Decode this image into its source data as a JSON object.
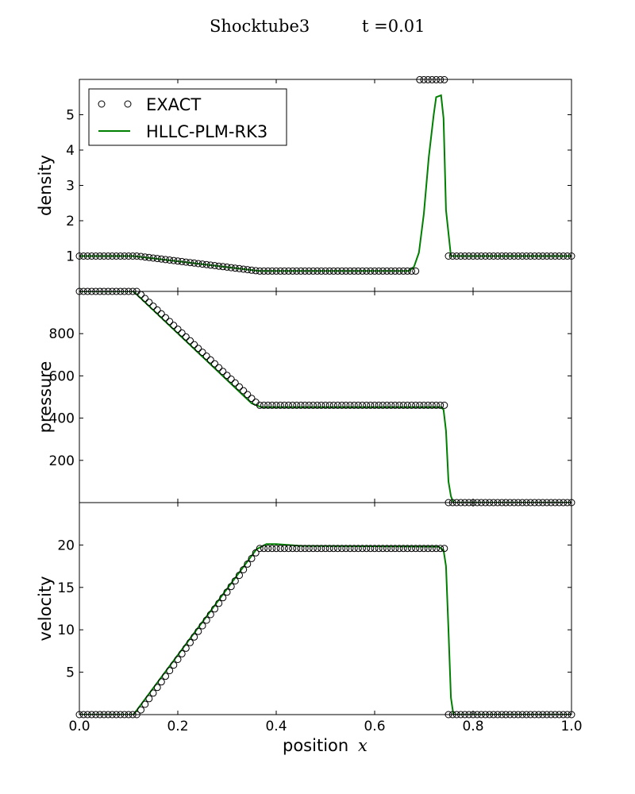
{
  "title": {
    "left": "Shocktube3",
    "right": "t =0.01"
  },
  "legend": {
    "exact_label": "EXACT",
    "numeric_label": "HLLC-PLM-RK3",
    "placement": "top-left of density panel"
  },
  "colors": {
    "exact_marker": "#000000",
    "numeric_line": "#008000",
    "axes": "#000000",
    "background": "#ffffff"
  },
  "xaxis": {
    "label_text": "position",
    "label_var": "x",
    "xlim": [
      0.0,
      1.0
    ],
    "ticks": [
      0.0,
      0.2,
      0.4,
      0.6,
      0.8,
      1.0
    ],
    "tick_labels": [
      "0.0",
      "0.2",
      "0.4",
      "0.6",
      "0.8",
      "1.0"
    ]
  },
  "chart_data": [
    {
      "type": "line",
      "panel": "density",
      "ylabel": "density",
      "ylim": [
        0,
        6
      ],
      "yticks": [
        1,
        2,
        3,
        4,
        5
      ],
      "ytick_labels": [
        "1",
        "2",
        "3",
        "4",
        "5"
      ],
      "series": [
        {
          "name": "EXACT",
          "style": "open-circle-markers",
          "x": [
            0.0,
            0.118,
            0.365,
            0.69,
            0.69,
            0.746,
            0.746,
            1.0
          ],
          "y": [
            1.0,
            1.0,
            0.575,
            0.575,
            5.99,
            5.99,
            1.0,
            1.0
          ],
          "note": "Sample points 1/120 spacing; peak values above axis clipped at top"
        },
        {
          "name": "HLLC-PLM-RK3",
          "style": "solid-line",
          "x": [
            0.0,
            0.11,
            0.365,
            0.67,
            0.68,
            0.69,
            0.7,
            0.71,
            0.72,
            0.725,
            0.735,
            0.74,
            0.745,
            0.755,
            0.76,
            1.0
          ],
          "y": [
            1.0,
            1.0,
            0.58,
            0.58,
            0.7,
            1.1,
            2.2,
            3.8,
            5.0,
            5.5,
            5.55,
            4.9,
            2.3,
            1.0,
            1.0,
            1.0
          ]
        }
      ]
    },
    {
      "type": "line",
      "panel": "pressure",
      "ylabel": "pressure",
      "ylim": [
        0,
        1000
      ],
      "yticks": [
        200,
        400,
        600,
        800
      ],
      "ytick_labels": [
        "200",
        "400",
        "600",
        "800"
      ],
      "series": [
        {
          "name": "EXACT",
          "style": "open-circle-markers",
          "x": [
            0.0,
            0.118,
            0.365,
            0.746,
            0.746,
            1.0
          ],
          "y": [
            1000,
            1000,
            460.9,
            460.9,
            0.01,
            0.01
          ]
        },
        {
          "name": "HLLC-PLM-RK3",
          "style": "solid-line",
          "x": [
            0.0,
            0.11,
            0.35,
            0.37,
            0.735,
            0.74,
            0.745,
            0.75,
            0.755,
            0.76,
            1.0
          ],
          "y": [
            1000,
            1000,
            470,
            452,
            452,
            440,
            340,
            100,
            30,
            0,
            0
          ]
        }
      ]
    },
    {
      "type": "line",
      "panel": "velocity",
      "ylabel": "velocity",
      "ylim": [
        0,
        25
      ],
      "yticks": [
        5,
        10,
        15,
        20
      ],
      "ytick_labels": [
        "5",
        "10",
        "15",
        "20"
      ],
      "series": [
        {
          "name": "EXACT",
          "style": "open-circle-markers",
          "x": [
            0.0,
            0.118,
            0.365,
            0.746,
            0.746,
            1.0
          ],
          "y": [
            0,
            0,
            19.6,
            19.6,
            0,
            0
          ]
        },
        {
          "name": "HLLC-PLM-RK3",
          "style": "solid-line",
          "x": [
            0.0,
            0.11,
            0.36,
            0.38,
            0.4,
            0.45,
            0.73,
            0.74,
            0.745,
            0.75,
            0.755,
            0.76,
            1.0
          ],
          "y": [
            0,
            0,
            19.5,
            20.1,
            20.1,
            19.9,
            19.8,
            19.4,
            17.5,
            10.0,
            2.0,
            0,
            0
          ]
        }
      ]
    }
  ]
}
